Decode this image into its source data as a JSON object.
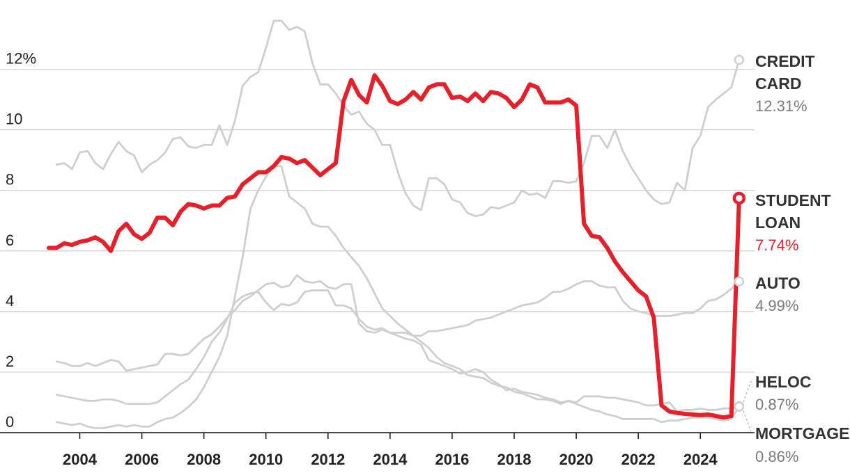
{
  "chart_data": {
    "type": "line",
    "title": "",
    "xlabel": "",
    "ylabel": "",
    "xlim": [
      2003.0,
      2025.5
    ],
    "ylim": [
      0,
      13
    ],
    "yticks": [
      {
        "value": 0,
        "label": "0"
      },
      {
        "value": 2,
        "label": "2"
      },
      {
        "value": 4,
        "label": "4"
      },
      {
        "value": 6,
        "label": "6"
      },
      {
        "value": 8,
        "label": "8"
      },
      {
        "value": 10,
        "label": "10"
      },
      {
        "value": 12,
        "label": "12%"
      }
    ],
    "xticks": [
      {
        "value": 2004,
        "label": "2004"
      },
      {
        "value": 2006,
        "label": "2006"
      },
      {
        "value": 2008,
        "label": "2008"
      },
      {
        "value": 2010,
        "label": "2010"
      },
      {
        "value": 2012,
        "label": "2012"
      },
      {
        "value": 2014,
        "label": "2014"
      },
      {
        "value": 2016,
        "label": "2016"
      },
      {
        "value": 2018,
        "label": "2018"
      },
      {
        "value": 2020,
        "label": "2020"
      },
      {
        "value": 2022,
        "label": "2022"
      },
      {
        "value": 2024,
        "label": "2024"
      }
    ],
    "gridlines": true,
    "legend": "direct labels at right",
    "highlight_color": "#e5202a",
    "muted_color": "#cfcfcf",
    "series": [
      {
        "name": "CREDIT CARD",
        "value_label": "12.31%",
        "highlight": false,
        "x": [
          2003.25,
          2003.5,
          2003.75,
          2004.0,
          2004.25,
          2004.5,
          2004.75,
          2005.0,
          2005.25,
          2005.5,
          2005.75,
          2006.0,
          2006.25,
          2006.5,
          2006.75,
          2007.0,
          2007.25,
          2007.5,
          2007.75,
          2008.0,
          2008.25,
          2008.5,
          2008.75,
          2009.0,
          2009.25,
          2009.5,
          2009.75,
          2010.0,
          2010.25,
          2010.5,
          2010.75,
          2011.0,
          2011.25,
          2011.5,
          2011.75,
          2012.0,
          2012.25,
          2012.5,
          2012.75,
          2013.0,
          2013.25,
          2013.5,
          2013.75,
          2014.0,
          2014.25,
          2014.5,
          2014.75,
          2015.0,
          2015.25,
          2015.5,
          2015.75,
          2016.0,
          2016.25,
          2016.5,
          2016.75,
          2017.0,
          2017.25,
          2017.5,
          2017.75,
          2018.0,
          2018.25,
          2018.5,
          2018.75,
          2019.0,
          2019.25,
          2019.5,
          2019.75,
          2020.0,
          2020.25,
          2020.5,
          2020.75,
          2021.0,
          2021.25,
          2021.5,
          2021.75,
          2022.0,
          2022.25,
          2022.5,
          2022.75,
          2023.0,
          2023.25,
          2023.5,
          2023.75,
          2024.0,
          2024.25,
          2024.5,
          2024.75,
          2025.0,
          2025.25
        ],
        "y": [
          8.85,
          8.9,
          8.7,
          9.25,
          9.3,
          8.9,
          8.7,
          9.2,
          9.6,
          9.3,
          9.15,
          8.6,
          8.85,
          9.0,
          9.25,
          9.7,
          9.75,
          9.45,
          9.4,
          9.5,
          9.5,
          10.15,
          9.5,
          10.3,
          11.45,
          11.75,
          11.9,
          12.7,
          13.6,
          13.6,
          13.3,
          13.4,
          13.25,
          12.2,
          11.5,
          11.5,
          11.2,
          10.8,
          10.5,
          10.6,
          10.2,
          10.0,
          9.5,
          9.5,
          8.6,
          7.9,
          7.5,
          7.35,
          8.4,
          8.4,
          8.2,
          7.7,
          7.6,
          7.25,
          7.15,
          7.2,
          7.45,
          7.4,
          7.5,
          7.6,
          8.0,
          7.85,
          7.9,
          7.75,
          8.3,
          8.3,
          8.25,
          8.3,
          8.9,
          9.8,
          9.8,
          9.4,
          10.0,
          9.3,
          8.8,
          8.4,
          8.0,
          7.7,
          7.55,
          7.6,
          8.25,
          8.0,
          9.4,
          9.8,
          10.75,
          11.0,
          11.2,
          11.4,
          12.31
        ]
      },
      {
        "name": "STUDENT LOAN",
        "value_label": "7.74%",
        "highlight": true,
        "x": [
          2003.0,
          2003.25,
          2003.5,
          2003.75,
          2004.0,
          2004.25,
          2004.5,
          2004.75,
          2005.0,
          2005.25,
          2005.5,
          2005.75,
          2006.0,
          2006.25,
          2006.5,
          2006.75,
          2007.0,
          2007.25,
          2007.5,
          2007.75,
          2008.0,
          2008.25,
          2008.5,
          2008.75,
          2009.0,
          2009.25,
          2009.5,
          2009.75,
          2010.0,
          2010.25,
          2010.5,
          2010.75,
          2011.0,
          2011.25,
          2011.5,
          2011.75,
          2012.0,
          2012.25,
          2012.5,
          2012.75,
          2013.0,
          2013.25,
          2013.5,
          2013.75,
          2014.0,
          2014.25,
          2014.5,
          2014.75,
          2015.0,
          2015.25,
          2015.5,
          2015.75,
          2016.0,
          2016.25,
          2016.5,
          2016.75,
          2017.0,
          2017.25,
          2017.5,
          2017.75,
          2018.0,
          2018.25,
          2018.5,
          2018.75,
          2019.0,
          2019.25,
          2019.5,
          2019.75,
          2020.0,
          2020.25,
          2020.5,
          2020.75,
          2021.0,
          2021.25,
          2021.5,
          2021.75,
          2022.0,
          2022.25,
          2022.5,
          2022.75,
          2023.0,
          2023.25,
          2023.5,
          2023.75,
          2024.0,
          2024.25,
          2024.5,
          2024.75,
          2025.0,
          2025.25
        ],
        "y": [
          6.1,
          6.1,
          6.25,
          6.2,
          6.3,
          6.35,
          6.45,
          6.3,
          6.0,
          6.65,
          6.9,
          6.55,
          6.4,
          6.6,
          7.1,
          7.1,
          6.85,
          7.3,
          7.55,
          7.5,
          7.4,
          7.5,
          7.5,
          7.75,
          7.8,
          8.2,
          8.4,
          8.6,
          8.6,
          8.8,
          9.1,
          9.05,
          8.9,
          9.0,
          8.75,
          8.5,
          8.7,
          8.9,
          10.95,
          11.65,
          11.15,
          10.9,
          11.8,
          11.45,
          10.95,
          10.85,
          11.0,
          11.25,
          11.0,
          11.4,
          11.5,
          11.5,
          11.05,
          11.1,
          10.95,
          11.2,
          10.95,
          11.25,
          11.2,
          11.05,
          10.75,
          11.0,
          11.5,
          11.4,
          10.9,
          10.9,
          10.9,
          11.0,
          10.8,
          6.9,
          6.5,
          6.45,
          6.1,
          5.65,
          5.3,
          5.0,
          4.7,
          4.5,
          3.8,
          0.9,
          0.7,
          0.65,
          0.62,
          0.6,
          0.58,
          0.6,
          0.55,
          0.5,
          0.55,
          7.74
        ]
      },
      {
        "name": "AUTO",
        "value_label": "4.99%",
        "highlight": false,
        "x": [
          2003.25,
          2003.5,
          2003.75,
          2004.0,
          2004.25,
          2004.5,
          2004.75,
          2005.0,
          2005.25,
          2005.5,
          2005.75,
          2006.0,
          2006.25,
          2006.5,
          2006.75,
          2007.0,
          2007.25,
          2007.5,
          2007.75,
          2008.0,
          2008.25,
          2008.5,
          2008.75,
          2009.0,
          2009.25,
          2009.5,
          2009.75,
          2010.0,
          2010.25,
          2010.5,
          2010.75,
          2011.0,
          2011.25,
          2011.5,
          2011.75,
          2012.0,
          2012.25,
          2012.5,
          2012.75,
          2013.0,
          2013.25,
          2013.5,
          2013.75,
          2014.0,
          2014.25,
          2014.5,
          2014.75,
          2015.0,
          2015.25,
          2015.5,
          2015.75,
          2016.0,
          2016.25,
          2016.5,
          2016.75,
          2017.0,
          2017.25,
          2017.5,
          2017.75,
          2018.0,
          2018.25,
          2018.5,
          2018.75,
          2019.0,
          2019.25,
          2019.5,
          2019.75,
          2020.0,
          2020.25,
          2020.5,
          2020.75,
          2021.0,
          2021.25,
          2021.5,
          2021.75,
          2022.0,
          2022.25,
          2022.5,
          2022.75,
          2023.0,
          2023.25,
          2023.5,
          2023.75,
          2024.0,
          2024.25,
          2024.5,
          2024.75,
          2025.0,
          2025.25
        ],
        "y": [
          2.35,
          2.3,
          2.2,
          2.2,
          2.3,
          2.2,
          2.3,
          2.4,
          2.35,
          2.05,
          2.1,
          2.15,
          2.2,
          2.25,
          2.6,
          2.6,
          2.55,
          2.6,
          2.85,
          3.1,
          3.25,
          3.5,
          3.8,
          4.05,
          4.35,
          4.5,
          4.7,
          4.9,
          4.95,
          4.8,
          4.85,
          5.2,
          5.0,
          4.95,
          5.0,
          4.8,
          4.75,
          4.9,
          4.9,
          3.6,
          3.35,
          3.3,
          3.4,
          3.3,
          3.3,
          3.3,
          3.2,
          3.2,
          3.35,
          3.35,
          3.4,
          3.45,
          3.5,
          3.55,
          3.7,
          3.75,
          3.8,
          3.9,
          4.0,
          4.1,
          4.2,
          4.25,
          4.3,
          4.45,
          4.65,
          4.65,
          4.75,
          4.9,
          5.0,
          5.0,
          4.85,
          4.8,
          4.8,
          4.35,
          4.1,
          4.0,
          3.95,
          3.85,
          3.85,
          3.85,
          3.9,
          3.95,
          3.95,
          4.1,
          4.35,
          4.4,
          4.55,
          4.75,
          4.99
        ]
      },
      {
        "name": "HELOC",
        "value_label": "0.87%",
        "highlight": false,
        "x": [
          2003.25,
          2003.5,
          2003.75,
          2004.0,
          2004.25,
          2004.5,
          2004.75,
          2005.0,
          2005.25,
          2005.5,
          2005.75,
          2006.0,
          2006.25,
          2006.5,
          2006.75,
          2007.0,
          2007.25,
          2007.5,
          2007.75,
          2008.0,
          2008.25,
          2008.5,
          2008.75,
          2009.0,
          2009.25,
          2009.5,
          2009.75,
          2010.0,
          2010.25,
          2010.5,
          2010.75,
          2011.0,
          2011.25,
          2011.5,
          2011.75,
          2012.0,
          2012.25,
          2012.5,
          2012.75,
          2013.0,
          2013.25,
          2013.5,
          2013.75,
          2014.0,
          2014.25,
          2014.5,
          2014.75,
          2015.0,
          2015.25,
          2015.5,
          2015.75,
          2016.0,
          2016.25,
          2016.5,
          2016.75,
          2017.0,
          2017.25,
          2017.5,
          2017.75,
          2018.0,
          2018.25,
          2018.5,
          2018.75,
          2019.0,
          2019.25,
          2019.5,
          2019.75,
          2020.0,
          2020.25,
          2020.5,
          2020.75,
          2021.0,
          2021.25,
          2021.5,
          2021.75,
          2022.0,
          2022.25,
          2022.5,
          2022.75,
          2023.0,
          2023.25,
          2023.5,
          2023.75,
          2024.0,
          2024.25,
          2024.5,
          2024.75,
          2025.0,
          2025.25
        ],
        "y": [
          1.25,
          1.2,
          1.15,
          1.1,
          1.05,
          1.05,
          1.1,
          1.1,
          1.05,
          0.95,
          0.95,
          0.95,
          0.95,
          1.0,
          1.2,
          1.4,
          1.6,
          1.75,
          2.1,
          2.5,
          3.0,
          3.3,
          3.75,
          4.3,
          4.5,
          4.6,
          4.65,
          4.3,
          4.05,
          4.25,
          4.2,
          4.3,
          4.65,
          4.7,
          4.7,
          4.7,
          4.2,
          4.2,
          4.1,
          3.75,
          3.5,
          3.4,
          3.45,
          3.3,
          3.2,
          3.1,
          3.05,
          2.9,
          2.4,
          2.3,
          2.2,
          2.1,
          1.95,
          2.0,
          2.1,
          2.0,
          1.75,
          1.6,
          1.4,
          1.45,
          1.35,
          1.3,
          1.25,
          1.15,
          1.1,
          1.0,
          1.05,
          1.0,
          1.2,
          1.2,
          1.2,
          1.15,
          1.15,
          1.1,
          1.05,
          1.0,
          0.9,
          0.9,
          0.95,
          1.0,
          0.7,
          0.75,
          0.75,
          0.8,
          0.75,
          0.75,
          0.8,
          0.8,
          0.87
        ]
      },
      {
        "name": "MORTGAGE",
        "value_label": "0.86%",
        "highlight": false,
        "x": [
          2003.25,
          2003.5,
          2003.75,
          2004.0,
          2004.25,
          2004.5,
          2004.75,
          2005.0,
          2005.25,
          2005.5,
          2005.75,
          2006.0,
          2006.25,
          2006.5,
          2006.75,
          2007.0,
          2007.25,
          2007.5,
          2007.75,
          2008.0,
          2008.25,
          2008.5,
          2008.75,
          2009.0,
          2009.25,
          2009.5,
          2009.75,
          2010.0,
          2010.25,
          2010.5,
          2010.75,
          2011.0,
          2011.25,
          2011.5,
          2011.75,
          2012.0,
          2012.25,
          2012.5,
          2012.75,
          2013.0,
          2013.25,
          2013.5,
          2013.75,
          2014.0,
          2014.25,
          2014.5,
          2014.75,
          2015.0,
          2015.25,
          2015.5,
          2015.75,
          2016.0,
          2016.25,
          2016.5,
          2016.75,
          2017.0,
          2017.25,
          2017.5,
          2017.75,
          2018.0,
          2018.25,
          2018.5,
          2018.75,
          2019.0,
          2019.25,
          2019.5,
          2019.75,
          2020.0,
          2020.25,
          2020.5,
          2020.75,
          2021.0,
          2021.25,
          2021.5,
          2021.75,
          2022.0,
          2022.25,
          2022.5,
          2022.75,
          2023.0,
          2023.25,
          2023.5,
          2023.75,
          2024.0,
          2024.25,
          2024.5,
          2024.75,
          2025.0,
          2025.25
        ],
        "y": [
          0.35,
          0.3,
          0.25,
          0.3,
          0.2,
          0.15,
          0.15,
          0.2,
          0.25,
          0.2,
          0.25,
          0.2,
          0.2,
          0.35,
          0.45,
          0.5,
          0.65,
          0.85,
          1.1,
          1.5,
          2.0,
          2.5,
          3.2,
          4.5,
          5.8,
          7.4,
          8.0,
          8.45,
          8.8,
          8.8,
          7.8,
          7.6,
          7.4,
          6.9,
          6.8,
          6.8,
          6.5,
          6.1,
          5.8,
          5.5,
          5.1,
          4.6,
          4.1,
          3.85,
          3.6,
          3.4,
          3.2,
          3.0,
          2.8,
          2.5,
          2.3,
          2.2,
          2.1,
          1.9,
          1.85,
          1.8,
          1.65,
          1.55,
          1.5,
          1.35,
          1.3,
          1.2,
          1.1,
          1.1,
          1.05,
          0.95,
          1.05,
          0.95,
          0.85,
          0.75,
          0.7,
          0.6,
          0.55,
          0.45,
          0.45,
          0.45,
          0.45,
          0.45,
          0.35,
          0.4,
          0.4,
          0.45,
          0.5,
          0.5,
          0.5,
          0.45,
          0.4,
          0.45,
          0.86
        ]
      }
    ]
  }
}
